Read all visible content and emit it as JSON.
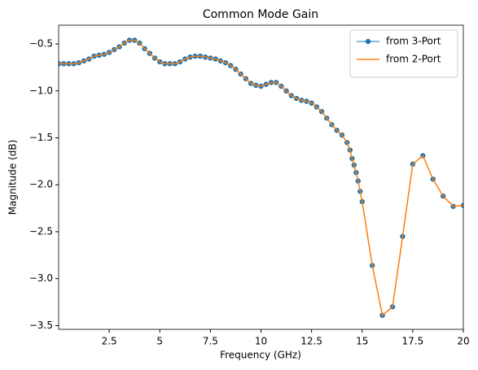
{
  "chart_data": {
    "type": "line",
    "title": "Common Mode Gain",
    "x_label": "Frequency (GHz)",
    "y_label": "Magnitude (dB)",
    "x": [
      0,
      0.25,
      0.5,
      0.75,
      1,
      1.25,
      1.5,
      1.75,
      2,
      2.25,
      2.5,
      2.75,
      3,
      3.25,
      3.5,
      3.75,
      4,
      4.25,
      4.5,
      4.75,
      5,
      5.25,
      5.5,
      5.75,
      6,
      6.25,
      6.5,
      6.75,
      7,
      7.25,
      7.5,
      7.75,
      8,
      8.25,
      8.5,
      8.75,
      9,
      9.25,
      9.5,
      9.75,
      10,
      10.25,
      10.5,
      10.75,
      11,
      11.25,
      11.5,
      11.75,
      12,
      12.25,
      12.5,
      12.75,
      13,
      13.25,
      13.5,
      13.75,
      14,
      14.25,
      14.4,
      14.5,
      14.6,
      14.7,
      14.8,
      14.9,
      15,
      15.5,
      16,
      16.5,
      17,
      17.5,
      18,
      18.5,
      19,
      19.5,
      20
    ],
    "series": [
      {
        "name": "from 3-Port",
        "color": "#1f77b4",
        "marker": "o",
        "values": [
          -0.71,
          -0.71,
          -0.71,
          -0.71,
          -0.7,
          -0.68,
          -0.66,
          -0.63,
          -0.62,
          -0.61,
          -0.59,
          -0.56,
          -0.53,
          -0.49,
          -0.46,
          -0.46,
          -0.49,
          -0.55,
          -0.6,
          -0.65,
          -0.69,
          -0.71,
          -0.71,
          -0.71,
          -0.69,
          -0.66,
          -0.64,
          -0.63,
          -0.63,
          -0.64,
          -0.65,
          -0.66,
          -0.68,
          -0.7,
          -0.73,
          -0.77,
          -0.82,
          -0.87,
          -0.92,
          -0.94,
          -0.95,
          -0.93,
          -0.91,
          -0.91,
          -0.95,
          -1.0,
          -1.05,
          -1.08,
          -1.1,
          -1.11,
          -1.13,
          -1.17,
          -1.22,
          -1.29,
          -1.36,
          -1.42,
          -1.47,
          -1.55,
          -1.63,
          -1.72,
          -1.79,
          -1.87,
          -1.96,
          -2.07,
          -2.18,
          -2.86,
          -3.39,
          -3.3,
          -2.55,
          -1.78,
          -1.69,
          -1.94,
          -2.12,
          -2.23,
          -2.22
        ]
      },
      {
        "name": "from 2-Port",
        "color": "#ff7f0e",
        "values": [
          -0.71,
          -0.71,
          -0.71,
          -0.71,
          -0.7,
          -0.68,
          -0.66,
          -0.63,
          -0.62,
          -0.61,
          -0.59,
          -0.56,
          -0.53,
          -0.49,
          -0.46,
          -0.46,
          -0.49,
          -0.55,
          -0.6,
          -0.65,
          -0.69,
          -0.71,
          -0.71,
          -0.71,
          -0.69,
          -0.66,
          -0.64,
          -0.63,
          -0.63,
          -0.64,
          -0.65,
          -0.66,
          -0.68,
          -0.7,
          -0.73,
          -0.77,
          -0.82,
          -0.87,
          -0.92,
          -0.94,
          -0.95,
          -0.93,
          -0.91,
          -0.91,
          -0.95,
          -1.0,
          -1.05,
          -1.08,
          -1.1,
          -1.11,
          -1.13,
          -1.17,
          -1.22,
          -1.29,
          -1.36,
          -1.42,
          -1.47,
          -1.55,
          -1.63,
          -1.72,
          -1.79,
          -1.87,
          -1.96,
          -2.07,
          -2.18,
          -2.86,
          -3.39,
          -3.3,
          -2.55,
          -1.78,
          -1.69,
          -1.94,
          -2.12,
          -2.23,
          -2.22
        ]
      }
    ],
    "xlim": [
      0,
      20
    ],
    "xticks": [
      2.5,
      5,
      7.5,
      10,
      12.5,
      15,
      17.5,
      20
    ],
    "ylim": [
      -3.54,
      -0.3
    ],
    "yticks": [
      {
        "value": -3.5,
        "label": "−3.5"
      },
      {
        "value": -3.0,
        "label": "−3.0"
      },
      {
        "value": -2.5,
        "label": "−2.5"
      },
      {
        "value": -2.0,
        "label": "−2.0"
      },
      {
        "value": -1.5,
        "label": "−1.5"
      },
      {
        "value": -1.0,
        "label": "−1.0"
      },
      {
        "value": -0.5,
        "label": "−0.5"
      }
    ],
    "grid": false,
    "legend": "upper-right"
  }
}
